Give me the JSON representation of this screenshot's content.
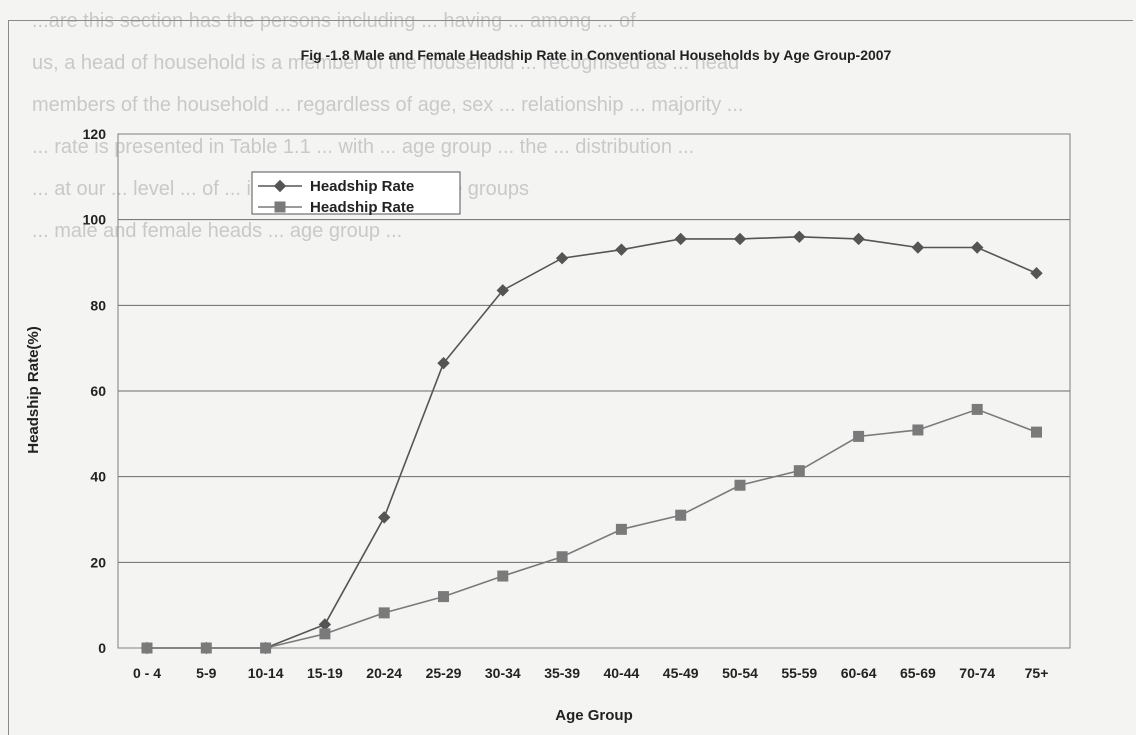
{
  "background_text": [
    "...are this section has the persons including ... having ... among ... of",
    "us, a head of household is a member of the household ... recognised as ... head",
    "members of the household ... regardless of age, sex ... relationship ... majority ...",
    "... rate is presented in Table 1.1 ... with ... age group ... the ... distribution ...",
    "... at our ... level ... of ... in both ... and the ... age groups",
    "... male and female heads ... age group ..."
  ],
  "chart_data": {
    "type": "line",
    "title": "Fig -1.8 Male and Female Headship Rate in Conventional Households by Age Group-2007",
    "xlabel": "Age Group",
    "ylabel": "Headship Rate(%)",
    "ylim": [
      0,
      120
    ],
    "yticks": [
      0,
      20,
      40,
      60,
      80,
      100,
      120
    ],
    "categories": [
      "0 - 4",
      "5-9",
      "10-14",
      "15-19",
      "20-24",
      "25-29",
      "30-34",
      "35-39",
      "40-44",
      "45-49",
      "50-54",
      "55-59",
      "60-64",
      "65-69",
      "70-74",
      "75+"
    ],
    "series": [
      {
        "name": "Headship  Rate",
        "marker": "diamond",
        "color": "#555555",
        "values": [
          0,
          0,
          0,
          5.5,
          30.5,
          66.5,
          83.5,
          91,
          93,
          95.5,
          95.5,
          96,
          95.5,
          93.5,
          93.5,
          87.5
        ]
      },
      {
        "name": "Headship  Rate",
        "marker": "square",
        "color": "#7a7a7a",
        "values": [
          0,
          0,
          0,
          3.3,
          8.2,
          12,
          16.8,
          21.3,
          27.7,
          31,
          38,
          41.4,
          49.4,
          50.9,
          55.7,
          50.4
        ]
      }
    ],
    "grid": true,
    "legend": "top-left"
  }
}
